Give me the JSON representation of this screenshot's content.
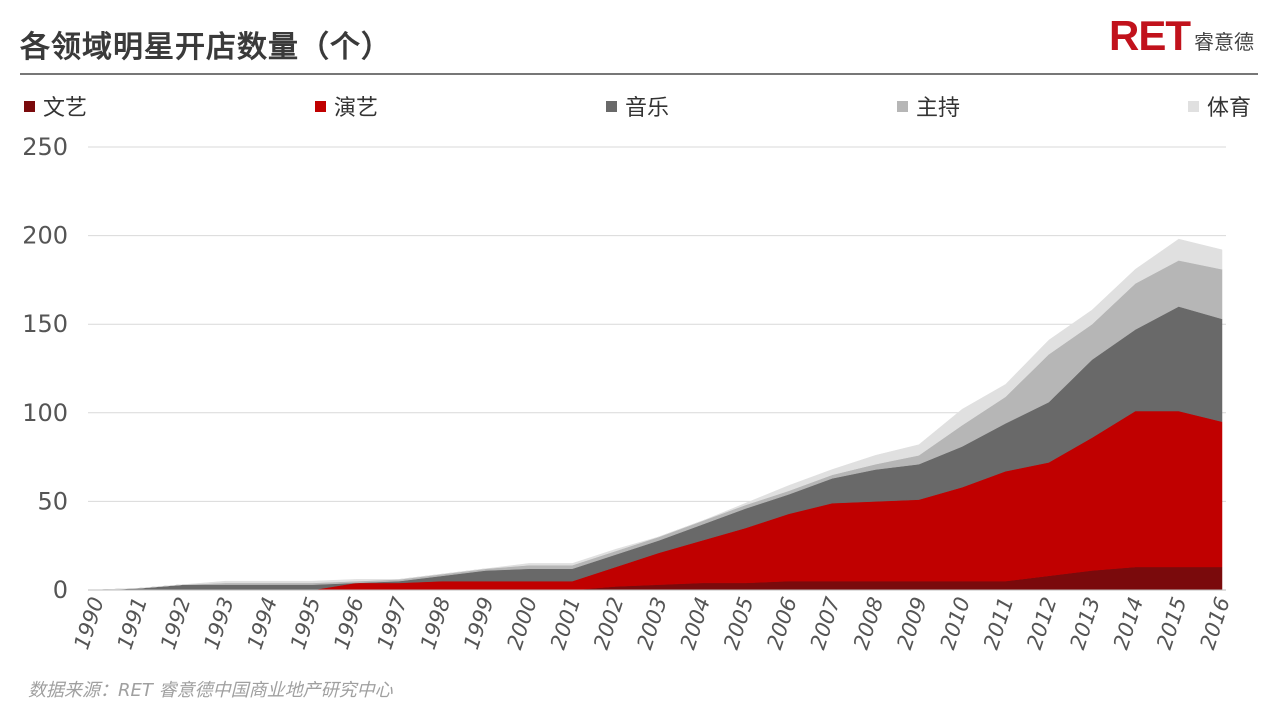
{
  "header": {
    "title": "各领域明星开店数量（个）",
    "brand_mark": "RET",
    "brand_text": "睿意德"
  },
  "source": "数据来源：RET 睿意德中国商业地产研究中心",
  "chart_data": {
    "type": "area",
    "stacked": true,
    "title": "各领域明星开店数量（个）",
    "xlabel": "",
    "ylabel": "",
    "ylim": [
      0,
      250
    ],
    "yticks": [
      "0",
      "50",
      "100",
      "150",
      "200",
      "250"
    ],
    "grid": true,
    "legend_position": "top",
    "categories": [
      "1990",
      "1991",
      "1992",
      "1993",
      "1994",
      "1995",
      "1996",
      "1997",
      "1998",
      "1999",
      "2000",
      "2001",
      "2002",
      "2003",
      "2004",
      "2005",
      "2006",
      "2007",
      "2008",
      "2009",
      "2010",
      "2011",
      "2012",
      "2013",
      "2014",
      "2015",
      "2016"
    ],
    "series": [
      {
        "name": "文艺",
        "color": "#7a0a0c",
        "values": [
          0,
          0,
          0,
          0,
          0,
          0,
          0,
          0,
          0,
          0,
          0,
          0,
          2,
          3,
          4,
          4,
          5,
          5,
          5,
          5,
          5,
          5,
          8,
          11,
          13,
          13,
          13
        ]
      },
      {
        "name": "演艺",
        "color": "#c00000",
        "values": [
          0,
          0,
          0,
          0,
          0,
          0,
          4,
          4,
          5,
          5,
          5,
          5,
          11,
          18,
          24,
          31,
          38,
          44,
          45,
          46,
          53,
          62,
          64,
          75,
          88,
          88,
          82
        ]
      },
      {
        "name": "音乐",
        "color": "#696969",
        "values": [
          0,
          1,
          3,
          3,
          3,
          3,
          0,
          1,
          3,
          6,
          7,
          7,
          7,
          7,
          9,
          11,
          11,
          14,
          18,
          20,
          23,
          27,
          34,
          44,
          46,
          59,
          58
        ]
      },
      {
        "name": "主持",
        "color": "#b6b6b6",
        "values": [
          0,
          0,
          0,
          1,
          1,
          1,
          1,
          1,
          1,
          1,
          2,
          2,
          2,
          2,
          2,
          2,
          2,
          2,
          3,
          5,
          12,
          15,
          27,
          20,
          26,
          26,
          28
        ]
      },
      {
        "name": "体育",
        "color": "#e0e0e0",
        "values": [
          0,
          0,
          0,
          1,
          1,
          1,
          1,
          0,
          0,
          0,
          1,
          1,
          1,
          0,
          0,
          1,
          3,
          3,
          5,
          6,
          9,
          7,
          8,
          8,
          8,
          12,
          11
        ]
      }
    ]
  }
}
